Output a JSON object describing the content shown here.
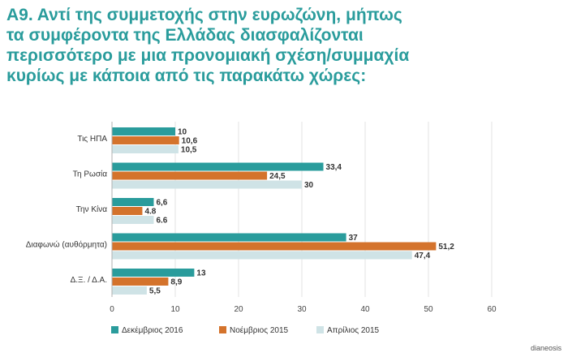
{
  "title_lines": [
    "Α9. Αντί της συμμετοχής στην ευρωζώνη, μήπως",
    "τα συμφέροντα της Ελλάδας διασφαλίζονται",
    "περισσότερο με μια προνομιακή σχέση/συμμαχία",
    "κυρίως με κάποια από τις παρακάτω χώρες:"
  ],
  "source": "dianeosis",
  "chart_data": {
    "type": "bar",
    "orientation": "horizontal",
    "categories": [
      "Τις ΗΠΑ",
      "Τη Ρωσία",
      "Την Κίνα",
      "Διαφωνώ (αυθόρμητα)",
      "Δ.Ξ. / Δ.Α."
    ],
    "series": [
      {
        "name": "Δεκέμβριος 2016",
        "color": "#2a9c9c",
        "values": [
          10,
          33.4,
          6.6,
          37,
          13
        ],
        "labels": [
          "10",
          "33,4",
          "6,6",
          "37",
          "13"
        ]
      },
      {
        "name": "Νοέμβριος 2015",
        "color": "#d4732c",
        "values": [
          10.6,
          24.5,
          4.8,
          51.2,
          8.9
        ],
        "labels": [
          "10,6",
          "24,5",
          "4.8",
          "51,2",
          "8,9"
        ]
      },
      {
        "name": "Απρίλιος 2015",
        "color": "#cfe3e6",
        "values": [
          10.5,
          30,
          6.6,
          47.4,
          5.5
        ],
        "labels": [
          "10,5",
          "30",
          "6.6",
          "47,4",
          "5,5"
        ]
      }
    ],
    "xlim": [
      0,
      60
    ],
    "xticks": [
      0,
      10,
      20,
      30,
      40,
      50,
      60
    ],
    "grid": true,
    "legend_position": "bottom"
  }
}
